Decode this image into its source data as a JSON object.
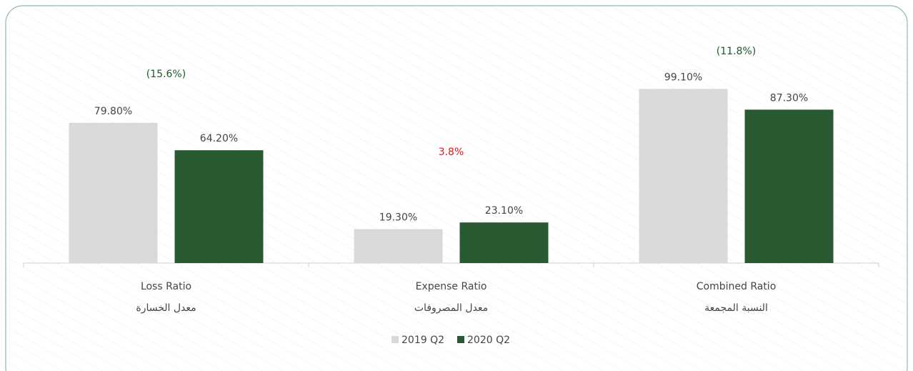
{
  "chart_data": {
    "type": "bar",
    "categories": [
      "Loss Ratio",
      "Expense Ratio",
      "Combined Ratio"
    ],
    "category_subtitles": [
      "معدل الخسارة",
      "معدل المصروفات",
      "النسبة المجمعة"
    ],
    "series": [
      {
        "name": "2019 Q2",
        "color": "#d9d9d9",
        "values": [
          79.8,
          19.3,
          99.1
        ],
        "value_labels": [
          "79.80%",
          "19.30%",
          "99.10%"
        ]
      },
      {
        "name": "2020 Q2",
        "color": "#2a5a32",
        "values": [
          64.2,
          23.1,
          87.3
        ],
        "value_labels": [
          "64.20%",
          "23.10%",
          "87.30%"
        ]
      }
    ],
    "annotations": [
      {
        "text": "(15.6%)",
        "color": "#1d5a24"
      },
      {
        "text": "3.8%",
        "color": "#e8141c"
      },
      {
        "text": "(11.8%)",
        "color": "#1d5a24"
      }
    ],
    "ylim": [
      0,
      120
    ],
    "legend": "bottom"
  }
}
